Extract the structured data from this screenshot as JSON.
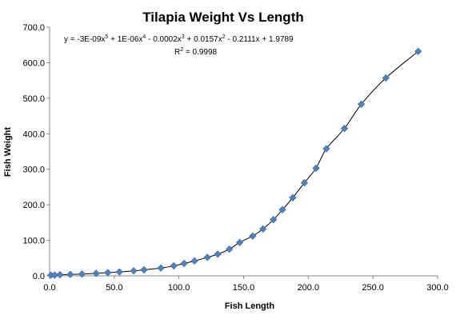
{
  "chart_data": {
    "type": "scatter",
    "title": "Tilapia Weight Vs Length",
    "xlabel": "Fish Length",
    "ylabel": "Fish Weight",
    "xlim": [
      0,
      300
    ],
    "ylim": [
      0,
      700
    ],
    "x_ticks": [
      "0.0",
      "50.0",
      "100.0",
      "150.0",
      "200.0",
      "250.0",
      "300.0"
    ],
    "y_ticks": [
      "0.0",
      "100.0",
      "200.0",
      "300.0",
      "400.0",
      "500.0",
      "600.0",
      "700.0"
    ],
    "grid": false,
    "marker_color": "#4f81bd",
    "trendline": {
      "type": "polynomial",
      "order": 5,
      "coefficients": [
        1.9789,
        -0.2111,
        0.0157,
        -0.0002,
        1e-06,
        -3e-09
      ],
      "equation_parts": {
        "prefix": "y = -3E-09x",
        "e1": "5",
        "mid1": " + 1E-06x",
        "e2": "4",
        "mid2": " - 0.0002x",
        "e3": "3",
        "mid3": " + 0.0157x",
        "e4": "2",
        "suffix": " - 0.2111x + 1.9789"
      },
      "r2_parts": {
        "prefix": "R",
        "sup": "2",
        "suffix": " = 0.9998"
      }
    },
    "points": [
      {
        "x": 1,
        "y": 2
      },
      {
        "x": 4,
        "y": 2
      },
      {
        "x": 8,
        "y": 3
      },
      {
        "x": 16,
        "y": 4
      },
      {
        "x": 25,
        "y": 5
      },
      {
        "x": 36,
        "y": 7
      },
      {
        "x": 45,
        "y": 9
      },
      {
        "x": 54,
        "y": 11
      },
      {
        "x": 65,
        "y": 14
      },
      {
        "x": 73,
        "y": 17
      },
      {
        "x": 86,
        "y": 22
      },
      {
        "x": 96,
        "y": 28
      },
      {
        "x": 104,
        "y": 35
      },
      {
        "x": 112,
        "y": 42
      },
      {
        "x": 122,
        "y": 52
      },
      {
        "x": 130,
        "y": 61
      },
      {
        "x": 139,
        "y": 75
      },
      {
        "x": 147,
        "y": 94
      },
      {
        "x": 157,
        "y": 112
      },
      {
        "x": 165,
        "y": 132
      },
      {
        "x": 173,
        "y": 158
      },
      {
        "x": 180,
        "y": 186
      },
      {
        "x": 188,
        "y": 220
      },
      {
        "x": 197,
        "y": 262
      },
      {
        "x": 206,
        "y": 303
      },
      {
        "x": 214,
        "y": 358
      },
      {
        "x": 228,
        "y": 415
      },
      {
        "x": 241,
        "y": 483
      },
      {
        "x": 260,
        "y": 557
      },
      {
        "x": 285,
        "y": 632
      }
    ]
  }
}
